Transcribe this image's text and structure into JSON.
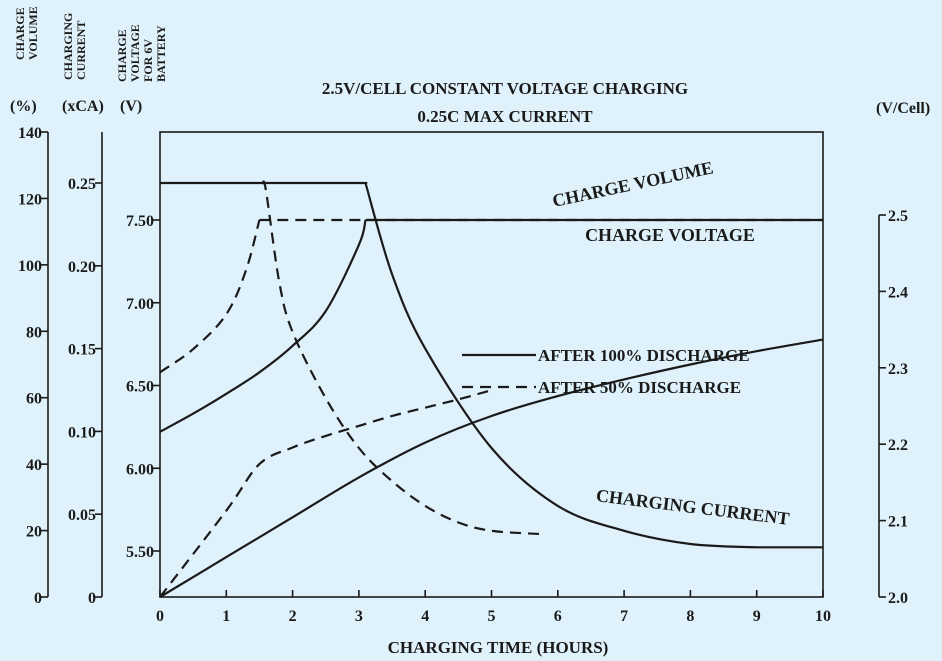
{
  "chart_data": {
    "type": "line",
    "title_lines": [
      "2.5V/CELL CONSTANT VOLTAGE CHARGING",
      "0.25C MAX CURRENT"
    ],
    "xlabel": "CHARGING TIME (HOURS)",
    "x_ticks": [
      "0",
      "1",
      "2",
      "3",
      "4",
      "5",
      "6",
      "7",
      "8",
      "9",
      "10"
    ],
    "xlim": [
      0,
      10
    ],
    "axes": [
      {
        "header_lines": [
          "CHARGE",
          "VOLUME"
        ],
        "unit": "(%)",
        "ticks": [
          "0",
          "20",
          "40",
          "60",
          "80",
          "100",
          "120",
          "140"
        ]
      },
      {
        "header_lines": [
          "CHARGING",
          "CURRENT"
        ],
        "unit": "(xCA)",
        "ticks": [
          "0",
          "0.05",
          "0.10",
          "0.15",
          "0.20",
          "0.25"
        ]
      },
      {
        "header_lines": [
          "CHARGE",
          "VOLTAGE",
          "FOR 6V",
          "BATTERY"
        ],
        "unit": "(V)",
        "ticks": [
          "5.50",
          "6.00",
          "6.50",
          "7.00",
          "7.50"
        ]
      },
      {
        "header_lines": [],
        "unit": "(V/Cell)",
        "ticks": [
          "2.0",
          "2.1",
          "2.2",
          "2.3",
          "2.4",
          "2.5"
        ]
      }
    ],
    "curve_labels": {
      "charge_volume": "CHARGE VOLUME",
      "charge_voltage": "CHARGE VOLTAGE",
      "charging_current": "CHARGING CURRENT"
    },
    "legend": [
      {
        "label": "AFTER 100% DISCHARGE",
        "style": "solid"
      },
      {
        "label": "AFTER 50% DISCHARGE",
        "style": "dashed"
      }
    ],
    "legend_position": "center-right",
    "series": [
      {
        "quantity": "charge volume",
        "condition": "after 100% discharge",
        "style": "solid",
        "axis_unit": "%",
        "x": [
          0,
          1,
          2,
          3,
          4,
          5,
          6,
          7,
          8,
          9,
          10
        ],
        "y": [
          0,
          12,
          24,
          36,
          46.5,
          54.5,
          60.5,
          65.5,
          70,
          74,
          77.5
        ]
      },
      {
        "quantity": "charge volume",
        "condition": "after 50% discharge",
        "style": "dashed",
        "axis_unit": "%",
        "x": [
          0,
          1,
          1.5,
          2,
          2.5,
          3,
          3.5,
          4,
          4.5,
          4.95
        ],
        "y": [
          0,
          26,
          40,
          45,
          48.5,
          51.5,
          54.5,
          57,
          59.5,
          62
        ]
      },
      {
        "quantity": "charge voltage",
        "condition": "after 100% discharge",
        "style": "solid",
        "axis_unit": "V",
        "x": [
          0,
          0.5,
          1,
          1.5,
          2,
          2.5,
          3,
          3.1,
          4,
          5,
          6,
          7,
          8,
          9,
          10
        ],
        "y": [
          6.22,
          6.33,
          6.45,
          6.58,
          6.74,
          6.95,
          7.35,
          7.5,
          7.5,
          7.5,
          7.5,
          7.5,
          7.5,
          7.5,
          7.5
        ]
      },
      {
        "quantity": "charge voltage",
        "condition": "after 50% discharge",
        "style": "dashed",
        "axis_unit": "V",
        "x": [
          0,
          0.5,
          1,
          1.3,
          1.5,
          2,
          5,
          10
        ],
        "y": [
          6.58,
          6.72,
          6.93,
          7.2,
          7.5,
          7.5,
          7.5,
          7.5
        ]
      },
      {
        "quantity": "charging current",
        "condition": "after 100% discharge",
        "style": "solid",
        "axis_unit": "xCA",
        "x": [
          0,
          1,
          2,
          3,
          3.1,
          3.5,
          4,
          5,
          6,
          7,
          8,
          9,
          10
        ],
        "y": [
          0.25,
          0.25,
          0.25,
          0.25,
          0.25,
          0.195,
          0.15,
          0.09,
          0.055,
          0.04,
          0.032,
          0.03,
          0.03
        ]
      },
      {
        "quantity": "charging current",
        "condition": "after 50% discharge",
        "style": "dashed",
        "axis_unit": "xCA",
        "x": [
          0,
          1.55,
          1.6,
          1.8,
          2,
          2.5,
          3,
          3.5,
          4,
          4.5,
          5,
          5.75
        ],
        "y": [
          null,
          0.25,
          0.245,
          0.19,
          0.16,
          0.12,
          0.09,
          0.07,
          0.055,
          0.045,
          0.04,
          0.038
        ]
      }
    ]
  }
}
